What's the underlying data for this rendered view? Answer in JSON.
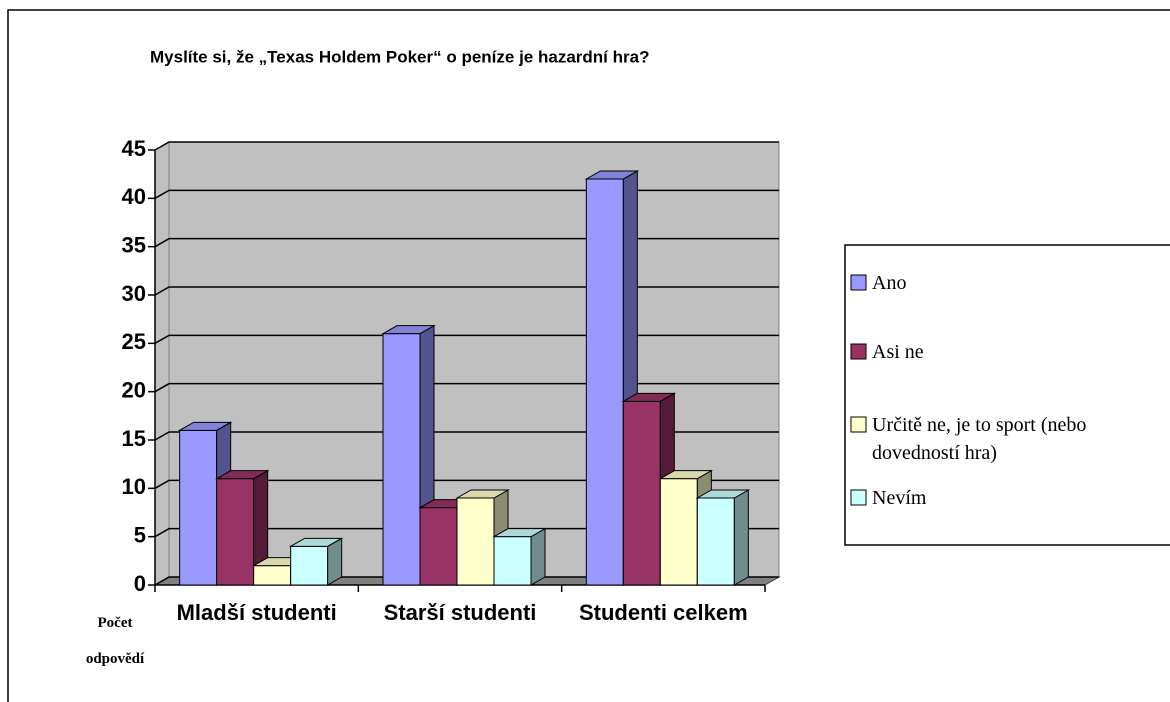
{
  "chart_data": {
    "type": "bar3d",
    "title": "Myslíte si, že „Texas Holdem Poker“ o peníze je hazardní hra?",
    "y_label": "Počet odpovědí",
    "categories": [
      "Mladší studenti",
      "Starší studenti",
      "Studenti celkem"
    ],
    "series": [
      {
        "name": "Ano",
        "color": "#9999ff",
        "values": [
          16,
          26,
          42
        ]
      },
      {
        "name": "Asi ne",
        "color": "#993366",
        "values": [
          11,
          8,
          19
        ]
      },
      {
        "name": "Určitě ne, je to sport (nebo dovedností hra)",
        "color": "#ffffcc",
        "values": [
          2,
          9,
          11
        ]
      },
      {
        "name": "Nevím",
        "color": "#ccffff",
        "values": [
          4,
          5,
          9
        ]
      }
    ],
    "ylim": [
      0,
      45
    ],
    "yticks": [
      0,
      5,
      10,
      15,
      20,
      25,
      30,
      35,
      40,
      45
    ],
    "grid": true,
    "legend": "right"
  }
}
